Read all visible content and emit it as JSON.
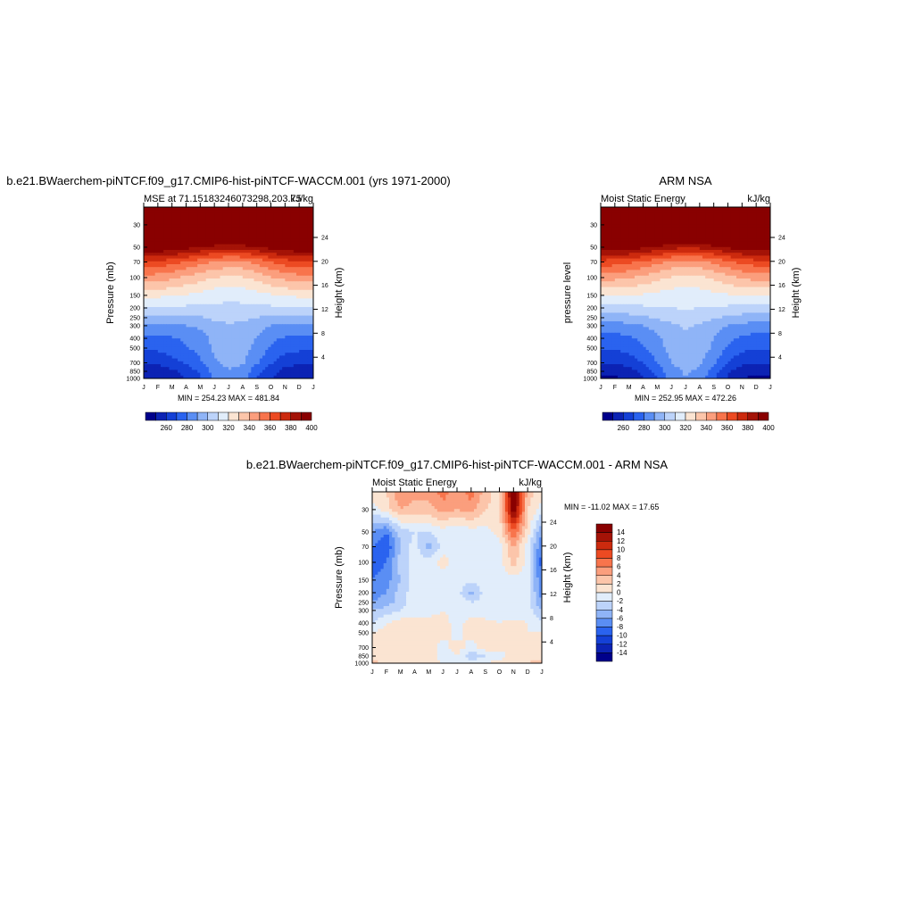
{
  "colors": {
    "contour_palette": [
      "#00008b",
      "#0c23b4",
      "#1440d6",
      "#2a63ef",
      "#5a8ef4",
      "#8fb4f7",
      "#bcd3fa",
      "#e1edfb",
      "#fbe4d2",
      "#fcc5aa",
      "#fb9e7d",
      "#f8744c",
      "#ec4a22",
      "#cc2a0e",
      "#a41307",
      "#890000"
    ]
  },
  "chart_data": [
    {
      "type": "heatmap",
      "panel": "model",
      "title": "b.e21.BWaerchem-piNTCF.f09_g17.CMIP6-hist-piNTCF-WACCM.001 (yrs 1971-2000)",
      "subtitle_left": "MSE at 71.15183246073298,203.75",
      "subtitle_right": "kJ/kg",
      "xlabel": "",
      "ylabel": "Pressure (mb)",
      "ylabel_right": "Height (km)",
      "x_ticks": [
        "J",
        "F",
        "M",
        "A",
        "M",
        "J",
        "J",
        "A",
        "S",
        "O",
        "N",
        "D",
        "J"
      ],
      "y_ticks": [
        30,
        50,
        70,
        100,
        150,
        200,
        250,
        300,
        400,
        500,
        700,
        850,
        1000
      ],
      "y_ticks_right": [
        4,
        8,
        12,
        16,
        20,
        24
      ],
      "y_scale": "log",
      "ylim": [
        1000,
        20
      ],
      "stats": "MIN = 254.23 MAX = 481.84",
      "colorbar_labels": [
        "260",
        "280",
        "300",
        "320",
        "340",
        "360",
        "380",
        "400"
      ],
      "levels": [
        255,
        260,
        270,
        280,
        290,
        300,
        310,
        320,
        330,
        340,
        350,
        360,
        370,
        380,
        390,
        400,
        480
      ],
      "pressure_levels": [
        1000,
        850,
        700,
        500,
        400,
        300,
        250,
        200,
        150,
        100,
        70,
        50,
        30,
        20
      ],
      "months": [
        0,
        1,
        2,
        3,
        4,
        5,
        6,
        7,
        8,
        9,
        10,
        11,
        12
      ],
      "values": [
        [
          260,
          260,
          265,
          270,
          278,
          292,
          298,
          295,
          280,
          270,
          262,
          260,
          260
        ],
        [
          264,
          264,
          268,
          274,
          282,
          294,
          299,
          297,
          284,
          274,
          266,
          264,
          264
        ],
        [
          272,
          272,
          276,
          281,
          288,
          298,
          303,
          301,
          291,
          281,
          274,
          272,
          272
        ],
        [
          282,
          282,
          285,
          289,
          294,
          302,
          306,
          304,
          297,
          289,
          284,
          282,
          282
        ],
        [
          287,
          287,
          289,
          292,
          296,
          303,
          307,
          305,
          299,
          292,
          289,
          287,
          287
        ],
        [
          297,
          297,
          298,
          300,
          302,
          306,
          309,
          308,
          304,
          300,
          298,
          297,
          297
        ],
        [
          306,
          306,
          307,
          308,
          309,
          312,
          313,
          312,
          310,
          308,
          307,
          306,
          306
        ],
        [
          318,
          318,
          318,
          318,
          318,
          318,
          318,
          318,
          318,
          318,
          318,
          318,
          318
        ],
        [
          332,
          332,
          331,
          329,
          327,
          324,
          322,
          323,
          326,
          329,
          331,
          332,
          332
        ],
        [
          356,
          355,
          352,
          348,
          344,
          340,
          338,
          339,
          343,
          349,
          353,
          356,
          356
        ],
        [
          378,
          377,
          374,
          369,
          364,
          359,
          357,
          358,
          363,
          370,
          375,
          378,
          378
        ],
        [
          410,
          410,
          408,
          404,
          400,
          396,
          394,
          395,
          399,
          404,
          408,
          410,
          410
        ],
        [
          450,
          450,
          450,
          450,
          450,
          450,
          450,
          450,
          450,
          450,
          450,
          450,
          450
        ],
        [
          480,
          480,
          480,
          480,
          480,
          480,
          480,
          480,
          480,
          480,
          480,
          480,
          480
        ]
      ]
    },
    {
      "type": "heatmap",
      "panel": "obs",
      "title": "ARM NSA",
      "subtitle_left": "Moist Static Energy",
      "subtitle_right": "kJ/kg",
      "xlabel": "",
      "ylabel": "pressure level",
      "ylabel_right": "Height (km)",
      "x_ticks": [
        "J",
        "F",
        "M",
        "A",
        "M",
        "J",
        "J",
        "A",
        "S",
        "O",
        "N",
        "D",
        "J"
      ],
      "y_ticks": [
        30,
        50,
        70,
        100,
        150,
        200,
        250,
        300,
        400,
        500,
        700,
        850,
        1000
      ],
      "y_ticks_right": [
        4,
        8,
        12,
        16,
        20,
        24
      ],
      "y_scale": "log",
      "ylim": [
        1000,
        20
      ],
      "stats": "MIN = 252.95 MAX = 472.26",
      "colorbar_labels": [
        "260",
        "280",
        "300",
        "320",
        "340",
        "360",
        "380",
        "400"
      ],
      "levels": [
        255,
        260,
        270,
        280,
        290,
        300,
        310,
        320,
        330,
        340,
        350,
        360,
        370,
        380,
        390,
        400,
        480
      ],
      "pressure_levels": [
        1000,
        850,
        700,
        500,
        400,
        300,
        250,
        200,
        150,
        100,
        70,
        50,
        30,
        20
      ],
      "months": [
        0,
        1,
        2,
        3,
        4,
        5,
        6,
        7,
        8,
        9,
        10,
        11,
        12
      ],
      "values": [
        [
          258,
          258,
          263,
          270,
          280,
          294,
          300,
          296,
          281,
          268,
          260,
          258,
          258
        ],
        [
          262,
          262,
          266,
          273,
          284,
          296,
          301,
          298,
          285,
          272,
          264,
          262,
          262
        ],
        [
          270,
          270,
          274,
          280,
          290,
          300,
          305,
          302,
          292,
          280,
          272,
          270,
          270
        ],
        [
          281,
          281,
          284,
          289,
          296,
          304,
          308,
          306,
          298,
          289,
          283,
          281,
          281
        ],
        [
          286,
          286,
          288,
          292,
          298,
          305,
          309,
          307,
          300,
          292,
          288,
          286,
          286
        ],
        [
          296,
          296,
          297,
          300,
          304,
          308,
          311,
          309,
          305,
          300,
          297,
          296,
          296
        ],
        [
          305,
          305,
          306,
          308,
          311,
          314,
          315,
          314,
          311,
          308,
          306,
          305,
          305
        ],
        [
          316,
          316,
          317,
          318,
          319,
          320,
          321,
          320,
          319,
          318,
          317,
          316,
          316
        ],
        [
          331,
          331,
          330,
          329,
          327,
          325,
          324,
          325,
          327,
          329,
          330,
          331,
          331
        ],
        [
          354,
          353,
          351,
          347,
          343,
          339,
          337,
          338,
          342,
          347,
          351,
          354,
          354
        ],
        [
          376,
          375,
          372,
          368,
          363,
          358,
          356,
          357,
          362,
          368,
          373,
          376,
          376
        ],
        [
          408,
          408,
          406,
          402,
          398,
          394,
          392,
          393,
          397,
          402,
          406,
          408,
          408
        ],
        [
          445,
          445,
          445,
          445,
          445,
          445,
          445,
          445,
          445,
          445,
          445,
          445,
          445
        ],
        [
          470,
          470,
          470,
          470,
          470,
          470,
          470,
          470,
          470,
          470,
          470,
          470,
          470
        ]
      ]
    },
    {
      "type": "heatmap",
      "panel": "diff",
      "title": "b.e21.BWaerchem-piNTCF.f09_g17.CMIP6-hist-piNTCF-WACCM.001 - ARM NSA",
      "subtitle_left": "Moist Static Energy",
      "subtitle_right": "kJ/kg",
      "xlabel": "",
      "ylabel": "Pressure (mb)",
      "ylabel_right": "Height (km)",
      "x_ticks": [
        "J",
        "F",
        "M",
        "A",
        "M",
        "J",
        "J",
        "A",
        "S",
        "O",
        "N",
        "D",
        "J"
      ],
      "y_ticks": [
        30,
        50,
        70,
        100,
        150,
        200,
        250,
        300,
        400,
        500,
        700,
        850,
        1000
      ],
      "y_ticks_right": [
        4,
        8,
        12,
        16,
        20,
        24
      ],
      "y_scale": "log",
      "ylim": [
        1000,
        20
      ],
      "stats": "MIN = -11.02 MAX =  17.65",
      "colorbar_labels": [
        "14",
        "12",
        "10",
        "8",
        "6",
        "4",
        "2",
        "0",
        "-2",
        "-4",
        "-6",
        "-8",
        "-10",
        "-12",
        "-14"
      ],
      "levels": [
        -20,
        -14,
        -12,
        -10,
        -8,
        -6,
        -4,
        -2,
        0,
        2,
        4,
        6,
        8,
        10,
        12,
        14,
        20
      ],
      "pressure_levels": [
        1000,
        850,
        700,
        500,
        400,
        300,
        250,
        200,
        150,
        100,
        70,
        50,
        30,
        20
      ],
      "months": [
        0,
        1,
        2,
        3,
        4,
        5,
        6,
        7,
        8,
        9,
        10,
        11,
        12
      ],
      "values": [
        [
          3,
          1,
          1,
          0,
          1,
          0,
          0,
          0,
          0,
          1,
          1,
          2,
          3
        ],
        [
          1,
          1,
          1,
          1,
          1,
          -1,
          0,
          -4,
          -2,
          -1,
          1,
          1,
          1
        ],
        [
          2,
          1,
          0,
          1,
          1,
          -1,
          1,
          -1,
          1,
          1,
          0,
          1,
          2
        ],
        [
          0,
          1,
          0,
          1,
          2,
          1,
          -1,
          1,
          1,
          0,
          0,
          0,
          0
        ],
        [
          -2,
          0,
          1,
          1,
          1,
          1,
          -1,
          1,
          1,
          0,
          1,
          0,
          -2
        ],
        [
          -4,
          -3,
          -2,
          -1,
          -1,
          0,
          -1,
          -1,
          -2,
          -1,
          -2,
          -1,
          -4
        ],
        [
          -6,
          -5,
          -3,
          -1,
          -1,
          0,
          0,
          -2,
          -1,
          -1,
          -1,
          -1,
          -6
        ],
        [
          -7,
          -6,
          -3,
          -1,
          -1,
          -1,
          -1,
          -5,
          -1,
          -1,
          -1,
          -1,
          -7
        ],
        [
          -8,
          -7,
          -4,
          -1,
          -1,
          -1,
          -1,
          -1,
          -1,
          -1,
          -1,
          -1,
          -8
        ],
        [
          -9,
          -8,
          -3,
          -1,
          -1,
          1,
          -1,
          -1,
          -1,
          -1,
          3,
          -1,
          -9
        ],
        [
          -8,
          -10,
          -4,
          -1,
          -5,
          -1,
          -1,
          -1,
          -2,
          -1,
          4,
          -1,
          -8
        ],
        [
          -6,
          -8,
          -3,
          -2,
          -2,
          -1,
          -2,
          -1,
          -1,
          1,
          8,
          1,
          -6
        ],
        [
          -1,
          1,
          4,
          3,
          3,
          5,
          4,
          5,
          2,
          1,
          16,
          2,
          -1
        ],
        [
          1,
          2,
          6,
          5,
          5,
          7,
          5,
          7,
          3,
          1,
          17,
          3,
          1
        ]
      ]
    }
  ]
}
